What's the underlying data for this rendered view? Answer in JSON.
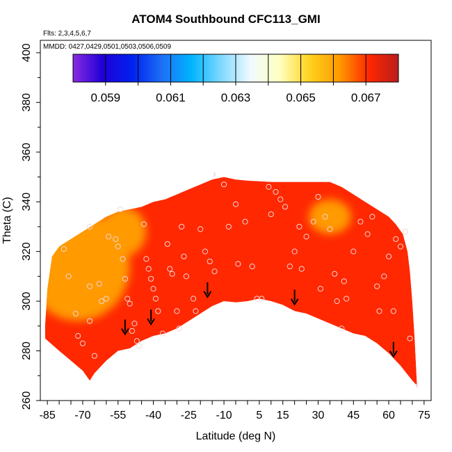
{
  "chart_data": {
    "type": "heatmap",
    "title": "ATOM4 Southbound CFC113_GMI",
    "flights_label": "Flts: 2,3,4,5,6,7",
    "dates_label": "MMDD: 0427,0429,0501,0503,0506,0509",
    "xlabel": "Latitude (deg N)",
    "ylabel": "Theta (C)",
    "xlim": [
      -88,
      78
    ],
    "ylim": [
      260,
      405
    ],
    "x_ticks": [
      -85,
      -70,
      -55,
      -40,
      -25,
      -10,
      5,
      15,
      30,
      45,
      60,
      75
    ],
    "x_minor_step": 5,
    "y_ticks": [
      260,
      280,
      300,
      320,
      340,
      360,
      380,
      400
    ],
    "colorbar": {
      "min": 0.058,
      "max": 0.068,
      "step": 0.001,
      "tick_labels": [
        "0.059",
        "0.061",
        "0.063",
        "0.065",
        "0.067"
      ],
      "colors": [
        "#8a2be2",
        "#1f00d6",
        "#0022f0",
        "#1e6ff5",
        "#00b4ff",
        "#7fd8ff",
        "#f0faff",
        "#ffffbe",
        "#ffd21e",
        "#ff9a00",
        "#ff2800",
        "#b81d1d"
      ]
    },
    "domain_bottom": [
      [
        -86,
        285
      ],
      [
        -80,
        280
      ],
      [
        -75,
        276
      ],
      [
        -70,
        272
      ],
      [
        -67,
        268
      ],
      [
        -65,
        271
      ],
      [
        -60,
        276
      ],
      [
        -55,
        280
      ],
      [
        -50,
        281
      ],
      [
        -45,
        284
      ],
      [
        -40,
        286
      ],
      [
        -35,
        287
      ],
      [
        -30,
        289
      ],
      [
        -25,
        292
      ],
      [
        -20,
        295
      ],
      [
        -15,
        298
      ],
      [
        -10,
        300
      ],
      [
        -5,
        299.5
      ],
      [
        0,
        300
      ],
      [
        5,
        301
      ],
      [
        10,
        300
      ],
      [
        15,
        298.5
      ],
      [
        20,
        296
      ],
      [
        25,
        295
      ],
      [
        30,
        293
      ],
      [
        35,
        291
      ],
      [
        40,
        289
      ],
      [
        45,
        287
      ],
      [
        50,
        286
      ],
      [
        55,
        283
      ],
      [
        60,
        279
      ],
      [
        65,
        274
      ],
      [
        70,
        268
      ],
      [
        72,
        266
      ]
    ],
    "domain_top": [
      [
        72,
        266
      ],
      [
        71,
        285
      ],
      [
        70,
        300
      ],
      [
        69,
        312
      ],
      [
        68,
        320
      ],
      [
        66,
        327
      ],
      [
        63,
        331
      ],
      [
        60,
        334
      ],
      [
        55,
        337
      ],
      [
        50,
        340
      ],
      [
        45,
        343
      ],
      [
        40,
        346
      ],
      [
        35,
        348
      ],
      [
        30,
        348
      ],
      [
        20,
        348
      ],
      [
        10,
        348
      ],
      [
        0,
        348.5
      ],
      [
        -5,
        349
      ],
      [
        -10,
        350
      ],
      [
        -15,
        349
      ],
      [
        -20,
        347
      ],
      [
        -25,
        345
      ],
      [
        -30,
        343
      ],
      [
        -35,
        341
      ],
      [
        -40,
        340
      ],
      [
        -45,
        338
      ],
      [
        -50,
        337
      ],
      [
        -55,
        336
      ],
      [
        -60,
        334
      ],
      [
        -65,
        331
      ],
      [
        -70,
        328
      ],
      [
        -75,
        325
      ],
      [
        -80,
        322
      ],
      [
        -83,
        318
      ],
      [
        -85,
        305
      ],
      [
        -86,
        290
      ],
      [
        -86,
        285
      ]
    ],
    "anomalies": [
      {
        "x": -77,
        "y": 315,
        "rx": 11,
        "ry": 14,
        "value": 0.0655
      },
      {
        "x": -74,
        "y": 318,
        "rx": 6,
        "ry": 7,
        "value": 0.0658
      },
      {
        "x": -72,
        "y": 314,
        "rx": 22,
        "ry": 22,
        "value": 0.0667
      },
      {
        "x": -53,
        "y": 328,
        "rx": 10,
        "ry": 10,
        "value": 0.0669
      },
      {
        "x": 35,
        "y": 334,
        "rx": 9,
        "ry": 7,
        "value": 0.0669
      }
    ],
    "base_value": 0.0679,
    "sample_points": [
      [
        -78,
        321
      ],
      [
        -76,
        310
      ],
      [
        -73,
        295
      ],
      [
        -72,
        286
      ],
      [
        -70,
        283
      ],
      [
        -67,
        330
      ],
      [
        -67,
        306
      ],
      [
        -67,
        292
      ],
      [
        -65,
        278
      ],
      [
        -63,
        307
      ],
      [
        -62,
        300
      ],
      [
        -60,
        301
      ],
      [
        -59,
        326
      ],
      [
        -56,
        325
      ],
      [
        -55,
        322
      ],
      [
        -54,
        337
      ],
      [
        -53,
        317
      ],
      [
        -52,
        309
      ],
      [
        -51,
        301
      ],
      [
        -50,
        299
      ],
      [
        -49,
        288
      ],
      [
        -48,
        291
      ],
      [
        -47,
        284
      ],
      [
        -46,
        282
      ],
      [
        -44,
        331
      ],
      [
        -43,
        317
      ],
      [
        -42,
        313
      ],
      [
        -41,
        309
      ],
      [
        -40,
        305
      ],
      [
        -39,
        301
      ],
      [
        -38,
        296
      ],
      [
        -36,
        287
      ],
      [
        -34,
        323
      ],
      [
        -33,
        313
      ],
      [
        -32,
        311
      ],
      [
        -30,
        296
      ],
      [
        -29,
        289
      ],
      [
        -28,
        330
      ],
      [
        -27,
        318
      ],
      [
        -26,
        310
      ],
      [
        -23,
        301
      ],
      [
        -22,
        296
      ],
      [
        -20,
        329
      ],
      [
        -18,
        320
      ],
      [
        -16,
        316
      ],
      [
        -14,
        312
      ],
      [
        -10,
        347
      ],
      [
        -8,
        330
      ],
      [
        -5,
        339
      ],
      [
        -4,
        315
      ],
      [
        -1,
        332
      ],
      [
        2,
        314
      ],
      [
        4,
        301
      ],
      [
        6,
        301
      ],
      [
        9,
        346
      ],
      [
        10,
        335
      ],
      [
        12,
        344
      ],
      [
        14,
        341
      ],
      [
        16,
        338
      ],
      [
        18,
        314
      ],
      [
        20,
        320
      ],
      [
        22,
        330
      ],
      [
        23,
        313
      ],
      [
        25,
        326
      ],
      [
        28,
        332
      ],
      [
        30,
        342
      ],
      [
        31,
        305
      ],
      [
        33,
        334
      ],
      [
        35,
        329
      ],
      [
        37,
        311
      ],
      [
        38,
        300
      ],
      [
        40,
        289
      ],
      [
        41,
        308
      ],
      [
        42,
        301
      ],
      [
        45,
        320
      ],
      [
        48,
        332
      ],
      [
        51,
        327
      ],
      [
        53,
        334
      ],
      [
        55,
        306
      ],
      [
        56,
        296
      ],
      [
        58,
        310
      ],
      [
        60,
        318
      ],
      [
        62,
        296
      ],
      [
        63,
        325
      ],
      [
        65,
        322
      ],
      [
        67,
        328
      ],
      [
        69,
        285
      ]
    ],
    "arrows": [
      [
        -52,
        287
      ],
      [
        -41,
        291
      ],
      [
        -17,
        302
      ],
      [
        20,
        299
      ],
      [
        62,
        278
      ]
    ],
    "point_markers": [
      [
        -14,
        351
      ],
      [
        72,
        266
      ]
    ]
  }
}
